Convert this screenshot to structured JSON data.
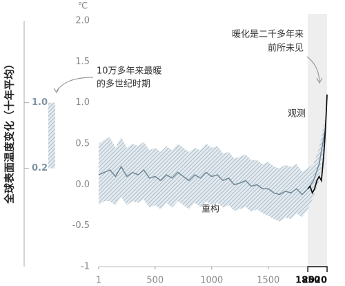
{
  "chart_data": {
    "type": "line",
    "y_label": "全球表面温度变化（十年平均）",
    "unit": "℃",
    "annotations": {
      "warmest_period": [
        "10万多年来最暖",
        "的多世纪时期"
      ],
      "unprecedented": [
        "暖化是二千多年来",
        "前所未见"
      ]
    },
    "xlim": [
      1,
      2020
    ],
    "xticks": [
      1,
      500,
      1000,
      1500,
      1850,
      2020
    ],
    "ylim": [
      -1,
      2
    ],
    "yticks": [
      -1,
      -0.5,
      {
        "value": 0,
        "label": "0.0"
      },
      0.5,
      {
        "value": 1,
        "label": "1.0"
      },
      1.5,
      {
        "value": 2,
        "label": "2.0"
      }
    ],
    "grid": false,
    "warmest_period": {
      "range": [
        0.2,
        1.0
      ],
      "ticks": [
        {
          "value": 1,
          "label": "1.0"
        },
        0.2
      ],
      "color": "#a9bac6"
    },
    "series": [
      {
        "name": "重构",
        "color": "#6f8796",
        "band_color": "#b7c7d1",
        "x": [
          1,
          50,
          100,
          150,
          200,
          250,
          300,
          350,
          400,
          450,
          500,
          550,
          600,
          650,
          700,
          750,
          800,
          850,
          900,
          950,
          1000,
          1050,
          1100,
          1150,
          1200,
          1250,
          1300,
          1350,
          1400,
          1450,
          1500,
          1550,
          1600,
          1650,
          1700,
          1750,
          1800,
          1850,
          1900,
          1950,
          2000
        ],
        "values": [
          0.12,
          0.15,
          0.18,
          0.1,
          0.22,
          0.1,
          0.15,
          0.12,
          0.18,
          0.08,
          0.1,
          0.05,
          0.12,
          0.08,
          0.15,
          0.1,
          0.05,
          0.12,
          0.08,
          0.15,
          0.1,
          0.12,
          0.05,
          0.08,
          0.0,
          0.02,
          0.05,
          -0.02,
          0.0,
          -0.05,
          -0.05,
          -0.1,
          -0.12,
          -0.08,
          -0.1,
          -0.05,
          -0.12,
          -0.05,
          0.05,
          0.25,
          0.65
        ],
        "lower": [
          -0.25,
          -0.2,
          -0.2,
          -0.25,
          -0.15,
          -0.25,
          -0.2,
          -0.22,
          -0.18,
          -0.28,
          -0.25,
          -0.3,
          -0.22,
          -0.28,
          -0.2,
          -0.25,
          -0.3,
          -0.22,
          -0.27,
          -0.2,
          -0.25,
          -0.22,
          -0.28,
          -0.25,
          -0.32,
          -0.3,
          -0.27,
          -0.33,
          -0.3,
          -0.35,
          -0.38,
          -0.42,
          -0.45,
          -0.4,
          -0.42,
          -0.35,
          -0.4,
          -0.3,
          -0.15,
          0.05,
          0.5
        ],
        "upper": [
          0.5,
          0.55,
          0.58,
          0.45,
          0.58,
          0.45,
          0.5,
          0.47,
          0.52,
          0.42,
          0.45,
          0.4,
          0.47,
          0.42,
          0.5,
          0.45,
          0.4,
          0.45,
          0.42,
          0.5,
          0.45,
          0.47,
          0.38,
          0.4,
          0.32,
          0.34,
          0.37,
          0.3,
          0.3,
          0.25,
          0.28,
          0.22,
          0.2,
          0.24,
          0.22,
          0.25,
          0.16,
          0.2,
          0.25,
          0.45,
          0.8
        ]
      },
      {
        "name": "观测",
        "color": "#111111",
        "x": [
          1850,
          1870,
          1890,
          1910,
          1930,
          1950,
          1970,
          1990,
          2000,
          2010,
          2020
        ],
        "values": [
          -0.05,
          -0.02,
          -0.1,
          -0.05,
          0.05,
          0.1,
          0.05,
          0.35,
          0.55,
          0.8,
          1.1
        ]
      }
    ]
  }
}
